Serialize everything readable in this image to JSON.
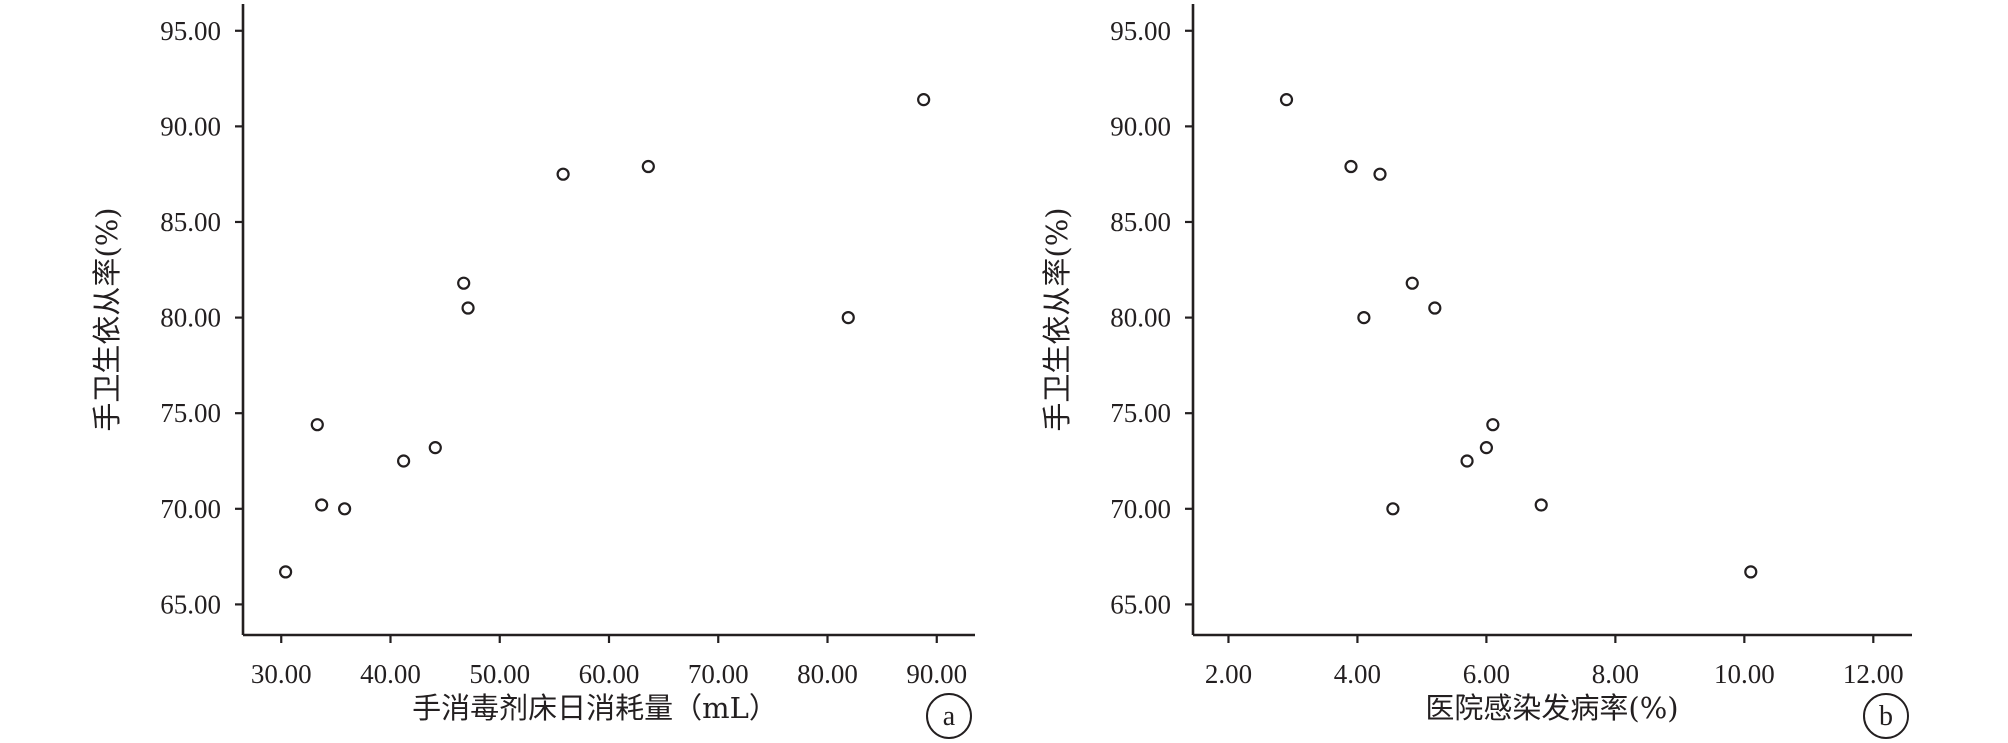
{
  "chart_data": [
    {
      "type": "scatter",
      "panel_label": "a",
      "xlabel": "手消毒剂床日消耗量（mL）",
      "ylabel": "手卫生依从率(%)",
      "xlim": [
        26.5,
        93.5
      ],
      "ylim": [
        63.4,
        96.4
      ],
      "xticks": [
        30,
        40,
        50,
        60,
        70,
        80,
        90
      ],
      "xtick_labels": [
        "30.00",
        "40.00",
        "50.00",
        "60.00",
        "70.00",
        "80.00",
        "90.00"
      ],
      "yticks": [
        65,
        70,
        75,
        80,
        85,
        90,
        95
      ],
      "ytick_labels": [
        "65.00",
        "70.00",
        "75.00",
        "80.00",
        "85.00",
        "90.00",
        "95.00"
      ],
      "grid": false,
      "points": [
        {
          "x": 30.4,
          "y": 66.7
        },
        {
          "x": 33.3,
          "y": 74.4
        },
        {
          "x": 33.7,
          "y": 70.2
        },
        {
          "x": 35.8,
          "y": 70.0
        },
        {
          "x": 41.2,
          "y": 72.5
        },
        {
          "x": 44.1,
          "y": 73.2
        },
        {
          "x": 46.7,
          "y": 81.8
        },
        {
          "x": 47.1,
          "y": 80.5
        },
        {
          "x": 55.8,
          "y": 87.5
        },
        {
          "x": 63.6,
          "y": 87.9
        },
        {
          "x": 81.9,
          "y": 80.0
        },
        {
          "x": 88.8,
          "y": 91.4
        }
      ]
    },
    {
      "type": "scatter",
      "panel_label": "b",
      "xlabel": "医院感染发病率(%)",
      "ylabel": "手卫生依从率(%)",
      "xlim": [
        1.45,
        12.6
      ],
      "ylim": [
        63.4,
        96.4
      ],
      "xticks": [
        2,
        4,
        6,
        8,
        10,
        12
      ],
      "xtick_labels": [
        "2.00",
        "4.00",
        "6.00",
        "8.00",
        "10.00",
        "12.00"
      ],
      "yticks": [
        65,
        70,
        75,
        80,
        85,
        90,
        95
      ],
      "ytick_labels": [
        "65.00",
        "70.00",
        "75.00",
        "80.00",
        "85.00",
        "90.00",
        "95.00"
      ],
      "grid": false,
      "points": [
        {
          "x": 2.9,
          "y": 91.4
        },
        {
          "x": 3.9,
          "y": 87.9
        },
        {
          "x": 4.35,
          "y": 87.5
        },
        {
          "x": 4.1,
          "y": 80.0
        },
        {
          "x": 4.85,
          "y": 81.8
        },
        {
          "x": 5.2,
          "y": 80.5
        },
        {
          "x": 6.1,
          "y": 74.4
        },
        {
          "x": 6.0,
          "y": 73.2
        },
        {
          "x": 5.7,
          "y": 72.5
        },
        {
          "x": 4.55,
          "y": 70.0
        },
        {
          "x": 6.85,
          "y": 70.2
        },
        {
          "x": 10.1,
          "y": 66.7
        }
      ]
    }
  ]
}
